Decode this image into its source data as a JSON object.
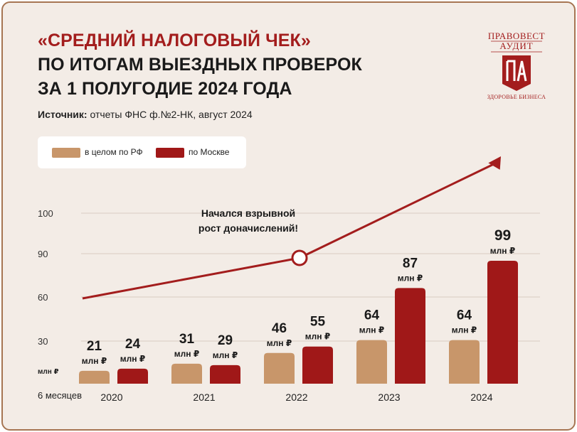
{
  "title": {
    "line1": "«СРЕДНИЙ НАЛОГОВЫЙ ЧЕК»",
    "line2": "ПО ИТОГАМ ВЫЕЗДНЫХ ПРОВЕРОК",
    "line3": "ЗА 1 ПОЛУГОДИЕ 2024 ГОДА"
  },
  "source": {
    "label": "Источник:",
    "text": " отчеты ФНС ф.№2-НК, август 2024"
  },
  "logo": {
    "line1": "ПРАВОВЕСТ",
    "line2": "АУДИТ",
    "monogram": "ПА",
    "tagline": "ЗДОРОВЬЕ БИЗНЕСА"
  },
  "colors": {
    "rf": "#c8966a",
    "moscow": "#a01818",
    "accent": "#a31d1d"
  },
  "chart_data": {
    "type": "bar",
    "categories": [
      "2020",
      "2021",
      "2022",
      "2023",
      "2024"
    ],
    "series": [
      {
        "name": "в целом по РФ",
        "values": [
          21,
          31,
          46,
          64,
          64
        ]
      },
      {
        "name": "по Москве",
        "values": [
          24,
          29,
          55,
          87,
          99
        ]
      }
    ],
    "value_unit": "млн ₽",
    "yticks": [
      "30",
      "60",
      "90",
      "100"
    ],
    "ylabel": "млн ₽",
    "xlabel": "6 месяцев",
    "annotation": [
      "Начался взрывной",
      "рост доначислений!"
    ],
    "grid": true,
    "legend_position": "top-left"
  }
}
